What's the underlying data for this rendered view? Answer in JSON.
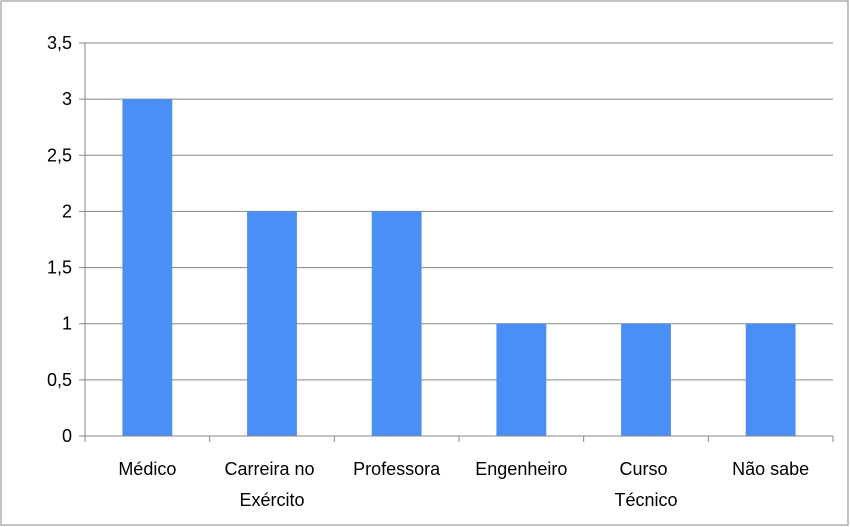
{
  "chart_data": {
    "type": "bar",
    "categories": [
      "Médico",
      "Carreira no Exército",
      "Professora",
      "Engenheiro",
      "Curso Técnico",
      "Não sabe"
    ],
    "values": [
      3,
      2,
      2,
      1,
      1,
      1
    ],
    "color": "#4a8ff5",
    "ylim": [
      0,
      3.5
    ],
    "yticks": [
      0,
      {
        "value": 0.5,
        "label": "0,5"
      },
      1,
      {
        "value": 1.5,
        "label": "1,5"
      },
      2,
      {
        "value": 2.5,
        "label": "2,5"
      },
      3,
      {
        "value": 3.5,
        "label": "3,5"
      }
    ],
    "grid": true
  }
}
